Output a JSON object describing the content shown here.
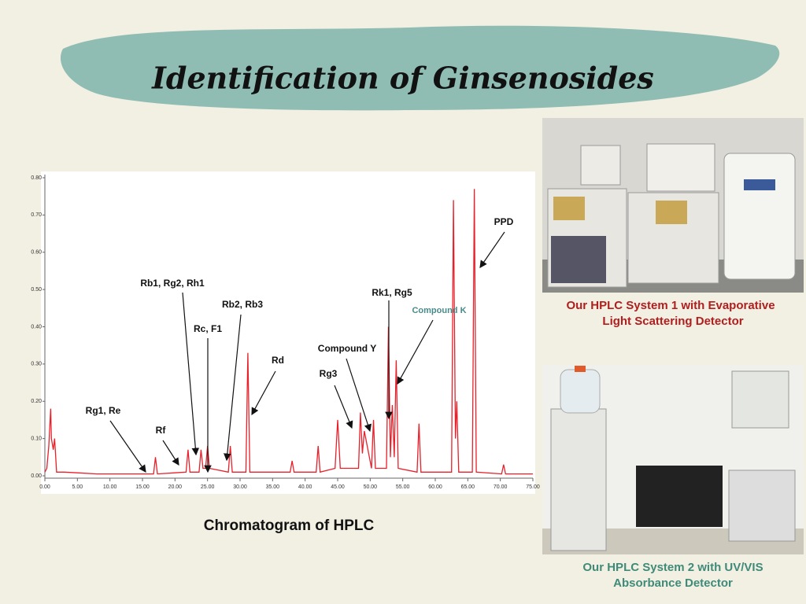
{
  "title": "Identification of Ginsenosides",
  "chart_data": {
    "type": "line",
    "caption": "Chromatogram of HPLC",
    "x": [
      0,
      0.3,
      0.6,
      0.9,
      1.0,
      1.3,
      1.5,
      1.8,
      3,
      5,
      8,
      12,
      16,
      16.7,
      17,
      17.3,
      20,
      21.7,
      22,
      22.3,
      23.7,
      24,
      24.3,
      24.7,
      25,
      25.3,
      28.2,
      28.5,
      28.8,
      30.9,
      31.2,
      31.5,
      35,
      37.7,
      38,
      38.3,
      41.7,
      42,
      42.3,
      44.6,
      45,
      45.4,
      48.2,
      48.5,
      48.8,
      49.1,
      50.2,
      50.5,
      50.8,
      52.5,
      52.8,
      53.1,
      53.4,
      53.7,
      54,
      54.3,
      57.2,
      57.5,
      57.8,
      62.5,
      62.8,
      63.1,
      63.3,
      63.6,
      65.7,
      66,
      66.3,
      70.2,
      70.5,
      70.8,
      75
    ],
    "series": [
      {
        "color": "#e8202a",
        "values": [
          0.01,
          0.02,
          0.08,
          0.18,
          0.1,
          0.07,
          0.1,
          0.01,
          0.01,
          0.008,
          0.005,
          0.005,
          0.005,
          0.005,
          0.05,
          0.005,
          0.008,
          0.01,
          0.07,
          0.01,
          0.01,
          0.07,
          0.02,
          0.02,
          0.08,
          0.02,
          0.01,
          0.08,
          0.01,
          0.01,
          0.33,
          0.01,
          0.01,
          0.01,
          0.04,
          0.01,
          0.01,
          0.08,
          0.01,
          0.02,
          0.15,
          0.02,
          0.02,
          0.17,
          0.06,
          0.12,
          0.02,
          0.15,
          0.02,
          0.02,
          0.4,
          0.05,
          0.19,
          0.05,
          0.31,
          0.02,
          0.01,
          0.14,
          0.01,
          0.01,
          0.74,
          0.1,
          0.2,
          0.01,
          0.01,
          0.77,
          0.01,
          0.005,
          0.03,
          0.005,
          0.005
        ]
      }
    ],
    "xlim": [
      0,
      75
    ],
    "ylim": [
      0,
      0.8
    ],
    "xticks": [
      {
        "value": 0,
        "label": "0.00"
      },
      {
        "value": 5,
        "label": "5.00"
      },
      {
        "value": 10,
        "label": "10.00"
      },
      {
        "value": 15,
        "label": "15.00"
      },
      {
        "value": 20,
        "label": "20.00"
      },
      {
        "value": 25,
        "label": "25.00"
      },
      {
        "value": 30,
        "label": "30.00"
      },
      {
        "value": 35,
        "label": "35.00"
      },
      {
        "value": 40,
        "label": "40.00"
      },
      {
        "value": 45,
        "label": "45.00"
      },
      {
        "value": 50,
        "label": "50.00"
      },
      {
        "value": 55,
        "label": "55.00"
      },
      {
        "value": 60,
        "label": "60.00"
      },
      {
        "value": 65,
        "label": "65.00"
      },
      {
        "value": 70,
        "label": "70.00"
      },
      {
        "value": 75,
        "label": "75.00"
      }
    ],
    "yticks": [
      {
        "value": 0,
        "label": "0.00"
      },
      {
        "value": 0.1,
        "label": "0.10"
      },
      {
        "value": 0.2,
        "label": "0.20"
      },
      {
        "value": 0.3,
        "label": "0.30"
      },
      {
        "value": 0.4,
        "label": "0.40"
      },
      {
        "value": 0.5,
        "label": "0.50"
      },
      {
        "value": 0.6,
        "label": "0.60"
      },
      {
        "value": 0.7,
        "label": "0.70"
      },
      {
        "value": 0.8,
        "label": "0.80"
      }
    ],
    "annotations": [
      "Rg1, Re",
      "Rf",
      "Rb1, Rg2, Rh1",
      "Rc, F1",
      "Rb2, Rb3",
      "Rd",
      "Compound Y",
      "Rg3",
      "Rk1, Rg5",
      "Compound K",
      "PPD"
    ]
  },
  "photo1_caption": [
    "Our HPLC System 1 with Evaporative",
    "Light Scattering Detector"
  ],
  "photo2_caption": [
    "Our HPLC System 2 with UV/VIS",
    "Absorbance Detector"
  ]
}
